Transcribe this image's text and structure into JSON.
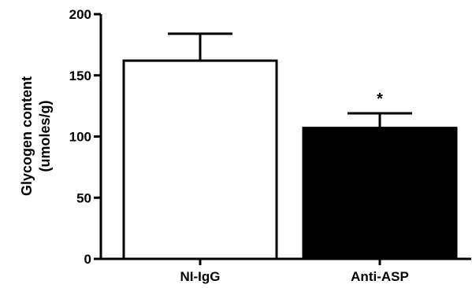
{
  "chart_data": {
    "type": "bar",
    "title": "",
    "ylabel_line1": "Glycogen content",
    "ylabel_line2": "(umoles/g)",
    "xlabel": "",
    "categories": [
      "NI-IgG",
      "Anti-ASP"
    ],
    "values": [
      162,
      107
    ],
    "errors": [
      22,
      12
    ],
    "bar_fill": [
      "#ffffff",
      "#000000"
    ],
    "ylim": [
      0,
      200
    ],
    "yticks": [
      0,
      50,
      100,
      150,
      200
    ],
    "annotations": [
      {
        "category": "Anti-ASP",
        "text": "*"
      }
    ],
    "grid": false,
    "legend": "none"
  }
}
